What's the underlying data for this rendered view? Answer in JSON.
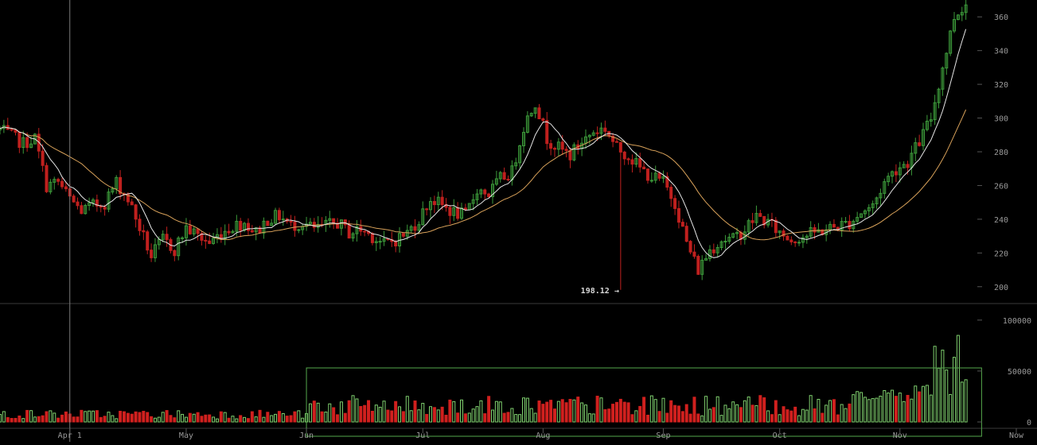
{
  "chart_data": {
    "type": "candlestick",
    "title": "",
    "grid": false,
    "legend": "none",
    "colors": {
      "up": "#3c9a3a",
      "down": "#c0201e",
      "sma_short": "#e6e6e6",
      "sma_long": "#d9a25a",
      "volume_up": "#7fcf6e",
      "volume_down": "#d0201e",
      "crosshair": "#7a7a7a",
      "selection": "#55a84c",
      "axis_text": "#9a9a9a"
    },
    "price_axis": {
      "ylim": [
        190,
        370
      ],
      "ticks": [
        200,
        220,
        240,
        260,
        280,
        300,
        320,
        340,
        360
      ]
    },
    "volume_axis": {
      "ylim": [
        0,
        110000
      ],
      "ticks": [
        0,
        50000,
        100000
      ]
    },
    "x_axis": {
      "domain": [
        "2014-03-14",
        "2014-12-01"
      ],
      "labels": [
        {
          "label": "Apr 1",
          "date": "2014-04-01"
        },
        {
          "label": "May",
          "date": "2014-05-01"
        },
        {
          "label": "Jun",
          "date": "2014-06-01"
        },
        {
          "label": "Jul",
          "date": "2014-07-01"
        },
        {
          "label": "Aug",
          "date": "2014-08-01"
        },
        {
          "label": "Sep",
          "date": "2014-09-01"
        },
        {
          "label": "Oct",
          "date": "2014-10-01"
        },
        {
          "label": "Nov",
          "date": "2014-11-01"
        },
        {
          "label": "Now",
          "date": "2014-12-01"
        }
      ]
    },
    "crosshair_date": "2014-04-01",
    "selection": {
      "start": "2014-06-01",
      "end": "2014-11-20"
    },
    "low_annotation": {
      "text": "198.12",
      "date": "2014-08-21",
      "value": 198.12
    },
    "close_series": [
      [
        "2014-03-14",
        293
      ],
      [
        "2014-03-17",
        289
      ],
      [
        "2014-03-20",
        285
      ],
      [
        "2014-03-23",
        288
      ],
      [
        "2014-03-26",
        260
      ],
      [
        "2014-03-29",
        262
      ],
      [
        "2014-04-01",
        252
      ],
      [
        "2014-04-04",
        245
      ],
      [
        "2014-04-07",
        248
      ],
      [
        "2014-04-10",
        250
      ],
      [
        "2014-04-13",
        262
      ],
      [
        "2014-04-16",
        252
      ],
      [
        "2014-04-19",
        235
      ],
      [
        "2014-04-22",
        218
      ],
      [
        "2014-04-25",
        228
      ],
      [
        "2014-04-28",
        222
      ],
      [
        "2014-05-01",
        235
      ],
      [
        "2014-05-04",
        230
      ],
      [
        "2014-05-07",
        226
      ],
      [
        "2014-05-10",
        232
      ],
      [
        "2014-05-13",
        236
      ],
      [
        "2014-05-16",
        238
      ],
      [
        "2014-05-19",
        232
      ],
      [
        "2014-05-22",
        240
      ],
      [
        "2014-05-25",
        242
      ],
      [
        "2014-05-28",
        236
      ],
      [
        "2014-05-31",
        238
      ],
      [
        "2014-06-03",
        234
      ],
      [
        "2014-06-06",
        236
      ],
      [
        "2014-06-09",
        238
      ],
      [
        "2014-06-12",
        232
      ],
      [
        "2014-06-15",
        234
      ],
      [
        "2014-06-18",
        230
      ],
      [
        "2014-06-21",
        225
      ],
      [
        "2014-06-24",
        228
      ],
      [
        "2014-06-27",
        232
      ],
      [
        "2014-06-30",
        240
      ],
      [
        "2014-07-03",
        252
      ],
      [
        "2014-07-06",
        248
      ],
      [
        "2014-07-09",
        244
      ],
      [
        "2014-07-12",
        242
      ],
      [
        "2014-07-15",
        258
      ],
      [
        "2014-07-18",
        255
      ],
      [
        "2014-07-21",
        264
      ],
      [
        "2014-07-24",
        268
      ],
      [
        "2014-07-27",
        295
      ],
      [
        "2014-07-30",
        310
      ],
      [
        "2014-08-02",
        288
      ],
      [
        "2014-08-05",
        282
      ],
      [
        "2014-08-08",
        278
      ],
      [
        "2014-08-11",
        286
      ],
      [
        "2014-08-14",
        292
      ],
      [
        "2014-08-17",
        294
      ],
      [
        "2014-08-20",
        282
      ],
      [
        "2014-08-23",
        278
      ],
      [
        "2014-08-26",
        270
      ],
      [
        "2014-08-29",
        265
      ],
      [
        "2014-09-01",
        262
      ],
      [
        "2014-09-04",
        250
      ],
      [
        "2014-09-07",
        226
      ],
      [
        "2014-09-10",
        210
      ],
      [
        "2014-09-13",
        222
      ],
      [
        "2014-09-16",
        228
      ],
      [
        "2014-09-19",
        228
      ],
      [
        "2014-09-22",
        234
      ],
      [
        "2014-09-25",
        242
      ],
      [
        "2014-09-28",
        238
      ],
      [
        "2014-10-01",
        232
      ],
      [
        "2014-10-04",
        228
      ],
      [
        "2014-10-07",
        230
      ],
      [
        "2014-10-10",
        232
      ],
      [
        "2014-10-13",
        234
      ],
      [
        "2014-10-16",
        236
      ],
      [
        "2014-10-19",
        238
      ],
      [
        "2014-10-22",
        244
      ],
      [
        "2014-10-25",
        248
      ],
      [
        "2014-10-28",
        262
      ],
      [
        "2014-10-31",
        270
      ],
      [
        "2014-11-03",
        274
      ],
      [
        "2014-11-06",
        286
      ],
      [
        "2014-11-09",
        300
      ],
      [
        "2014-11-12",
        330
      ],
      [
        "2014-11-15",
        360
      ],
      [
        "2014-11-18",
        368
      ]
    ]
  }
}
